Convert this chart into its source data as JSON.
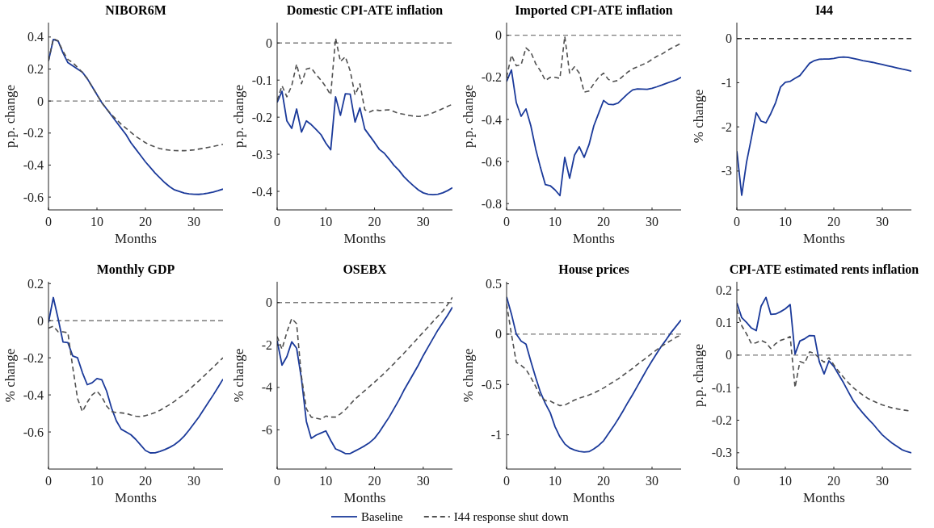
{
  "chart_data": [
    {
      "type": "line",
      "title": "NIBOR6M",
      "xlabel": "Months",
      "ylabel": "p.p. change",
      "x": [
        0,
        1,
        2,
        3,
        4,
        5,
        6,
        7,
        8,
        9,
        10,
        11,
        12,
        13,
        14,
        15,
        16,
        17,
        18,
        19,
        20,
        21,
        22,
        23,
        24,
        25,
        26,
        27,
        28,
        29,
        30,
        31,
        32,
        33,
        34,
        35,
        36
      ],
      "xlim": [
        0,
        36
      ],
      "xticks": [
        0,
        10,
        20,
        30
      ],
      "ylim": [
        -0.68,
        0.49
      ],
      "yticks": [
        -0.6,
        -0.4,
        -0.2,
        0,
        0.2,
        0.4
      ],
      "ref_lines": [
        {
          "axis": "y",
          "value": 0,
          "color": "#7a7a7a",
          "line_style": "dashed"
        }
      ],
      "series": [
        {
          "color": "#1b3a9a",
          "line_style": "solid",
          "values": [
            0.25,
            0.385,
            0.375,
            0.3,
            0.24,
            0.22,
            0.2,
            0.18,
            0.14,
            0.09,
            0.04,
            -0.01,
            -0.05,
            -0.09,
            -0.13,
            -0.17,
            -0.21,
            -0.26,
            -0.3,
            -0.34,
            -0.38,
            -0.415,
            -0.45,
            -0.48,
            -0.51,
            -0.535,
            -0.555,
            -0.565,
            -0.575,
            -0.58,
            -0.582,
            -0.583,
            -0.58,
            -0.575,
            -0.568,
            -0.56,
            -0.55
          ]
        },
        {
          "color": "#505050",
          "line_style": "dashed",
          "values": [
            0.25,
            0.39,
            0.375,
            0.31,
            0.26,
            0.24,
            0.21,
            0.18,
            0.14,
            0.09,
            0.04,
            -0.01,
            -0.05,
            -0.085,
            -0.115,
            -0.145,
            -0.17,
            -0.195,
            -0.22,
            -0.24,
            -0.26,
            -0.275,
            -0.287,
            -0.297,
            -0.303,
            -0.307,
            -0.309,
            -0.31,
            -0.31,
            -0.308,
            -0.305,
            -0.3,
            -0.295,
            -0.289,
            -0.283,
            -0.277,
            -0.27
          ]
        }
      ]
    },
    {
      "type": "line",
      "title": "Domestic CPI-ATE inflation",
      "xlabel": "Months",
      "ylabel": "p.p. change",
      "x": [
        0,
        1,
        2,
        3,
        4,
        5,
        6,
        7,
        8,
        9,
        10,
        11,
        12,
        13,
        14,
        15,
        16,
        17,
        18,
        19,
        20,
        21,
        22,
        23,
        24,
        25,
        26,
        27,
        28,
        29,
        30,
        31,
        32,
        33,
        34,
        35,
        36
      ],
      "xlim": [
        0,
        36
      ],
      "xticks": [
        0,
        10,
        20,
        30
      ],
      "ylim": [
        -0.45,
        0.055
      ],
      "yticks": [
        -0.4,
        -0.3,
        -0.2,
        -0.1,
        0
      ],
      "ref_lines": [
        {
          "axis": "y",
          "value": 0,
          "color": "#7a7a7a",
          "line_style": "dashed"
        }
      ],
      "series": [
        {
          "color": "#1b3a9a",
          "line_style": "solid",
          "values": [
            -0.16,
            -0.13,
            -0.21,
            -0.23,
            -0.178,
            -0.24,
            -0.21,
            -0.22,
            -0.233,
            -0.247,
            -0.27,
            -0.288,
            -0.145,
            -0.195,
            -0.137,
            -0.138,
            -0.213,
            -0.175,
            -0.232,
            -0.25,
            -0.268,
            -0.287,
            -0.297,
            -0.313,
            -0.33,
            -0.343,
            -0.36,
            -0.373,
            -0.385,
            -0.396,
            -0.404,
            -0.408,
            -0.409,
            -0.408,
            -0.404,
            -0.398,
            -0.39
          ]
        },
        {
          "color": "#505050",
          "line_style": "dashed",
          "values": [
            -0.155,
            -0.115,
            -0.145,
            -0.115,
            -0.057,
            -0.11,
            -0.07,
            -0.067,
            -0.085,
            -0.1,
            -0.118,
            -0.14,
            0.013,
            -0.05,
            -0.037,
            -0.075,
            -0.14,
            -0.11,
            -0.18,
            -0.186,
            -0.18,
            -0.182,
            -0.181,
            -0.18,
            -0.185,
            -0.19,
            -0.192,
            -0.195,
            -0.197,
            -0.198,
            -0.197,
            -0.193,
            -0.188,
            -0.183,
            -0.177,
            -0.171,
            -0.165
          ]
        }
      ]
    },
    {
      "type": "line",
      "title": "Imported CPI-ATE inflation",
      "xlabel": "Months",
      "ylabel": "p.p. change",
      "x": [
        0,
        1,
        2,
        3,
        4,
        5,
        6,
        7,
        8,
        9,
        10,
        11,
        12,
        13,
        14,
        15,
        16,
        17,
        18,
        19,
        20,
        21,
        22,
        23,
        24,
        25,
        26,
        27,
        28,
        29,
        30,
        31,
        32,
        33,
        34,
        35,
        36
      ],
      "xlim": [
        0,
        36
      ],
      "xticks": [
        0,
        10,
        20,
        30
      ],
      "ylim": [
        -0.83,
        0.06
      ],
      "yticks": [
        -0.8,
        -0.6,
        -0.4,
        -0.2,
        0
      ],
      "ref_lines": [
        {
          "axis": "y",
          "value": 0,
          "color": "#7a7a7a",
          "line_style": "dashed"
        }
      ],
      "series": [
        {
          "color": "#1b3a9a",
          "line_style": "solid",
          "values": [
            -0.22,
            -0.165,
            -0.32,
            -0.385,
            -0.35,
            -0.43,
            -0.54,
            -0.63,
            -0.71,
            -0.715,
            -0.735,
            -0.762,
            -0.58,
            -0.68,
            -0.57,
            -0.53,
            -0.58,
            -0.52,
            -0.43,
            -0.37,
            -0.31,
            -0.328,
            -0.33,
            -0.322,
            -0.3,
            -0.278,
            -0.26,
            -0.255,
            -0.256,
            -0.257,
            -0.252,
            -0.245,
            -0.237,
            -0.228,
            -0.22,
            -0.212,
            -0.2
          ]
        },
        {
          "color": "#505050",
          "line_style": "dashed",
          "values": [
            -0.2,
            -0.095,
            -0.145,
            -0.14,
            -0.06,
            -0.08,
            -0.135,
            -0.17,
            -0.215,
            -0.2,
            -0.2,
            -0.205,
            -0.005,
            -0.18,
            -0.15,
            -0.18,
            -0.27,
            -0.265,
            -0.23,
            -0.2,
            -0.18,
            -0.21,
            -0.22,
            -0.215,
            -0.195,
            -0.175,
            -0.16,
            -0.15,
            -0.14,
            -0.13,
            -0.115,
            -0.1,
            -0.09,
            -0.075,
            -0.062,
            -0.05,
            -0.038
          ]
        }
      ]
    },
    {
      "type": "line",
      "title": "I44",
      "xlabel": "Months",
      "ylabel": "% change",
      "x": [
        0,
        1,
        2,
        3,
        4,
        5,
        6,
        7,
        8,
        9,
        10,
        11,
        12,
        13,
        14,
        15,
        16,
        17,
        18,
        19,
        20,
        21,
        22,
        23,
        24,
        25,
        26,
        27,
        28,
        29,
        30,
        31,
        32,
        33,
        34,
        35,
        36
      ],
      "xlim": [
        0,
        36
      ],
      "xticks": [
        0,
        10,
        20,
        30
      ],
      "ylim": [
        -3.88,
        0.36
      ],
      "yticks": [
        -3,
        -2,
        -1,
        0
      ],
      "series": [
        {
          "color": "#1b3a9a",
          "line_style": "solid",
          "values": [
            -2.55,
            -3.55,
            -2.8,
            -2.25,
            -1.68,
            -1.87,
            -1.91,
            -1.7,
            -1.45,
            -1.1,
            -0.99,
            -0.97,
            -0.9,
            -0.84,
            -0.7,
            -0.56,
            -0.5,
            -0.47,
            -0.465,
            -0.465,
            -0.45,
            -0.43,
            -0.42,
            -0.43,
            -0.45,
            -0.475,
            -0.5,
            -0.52,
            -0.54,
            -0.565,
            -0.59,
            -0.615,
            -0.64,
            -0.665,
            -0.69,
            -0.71,
            -0.74
          ]
        },
        {
          "color": "#333333",
          "line_style": "dashed",
          "values": [
            0,
            0,
            0,
            0,
            0,
            0,
            0,
            0,
            0,
            0,
            0,
            0,
            0,
            0,
            0,
            0,
            0,
            0,
            0,
            0,
            0,
            0,
            0,
            0,
            0,
            0,
            0,
            0,
            0,
            0,
            0,
            0,
            0,
            0,
            0,
            0,
            0
          ]
        }
      ]
    },
    {
      "type": "line",
      "title": "Monthly GDP",
      "xlabel": "Months",
      "ylabel": "% change",
      "x": [
        0,
        1,
        2,
        3,
        4,
        5,
        6,
        7,
        8,
        9,
        10,
        11,
        12,
        13,
        14,
        15,
        16,
        17,
        18,
        19,
        20,
        21,
        22,
        23,
        24,
        25,
        26,
        27,
        28,
        29,
        30,
        31,
        32,
        33,
        34,
        35,
        36
      ],
      "xlim": [
        0,
        36
      ],
      "xticks": [
        0,
        10,
        20,
        30
      ],
      "ylim": [
        -0.8,
        0.21
      ],
      "yticks": [
        -0.6,
        -0.4,
        -0.2,
        0,
        0.2
      ],
      "ref_lines": [
        {
          "axis": "y",
          "value": 0,
          "color": "#7a7a7a",
          "line_style": "dashed"
        }
      ],
      "series": [
        {
          "color": "#1b3a9a",
          "line_style": "solid",
          "values": [
            -0.01,
            0.125,
            0.01,
            -0.115,
            -0.118,
            -0.19,
            -0.2,
            -0.28,
            -0.345,
            -0.335,
            -0.312,
            -0.318,
            -0.38,
            -0.47,
            -0.54,
            -0.585,
            -0.6,
            -0.615,
            -0.64,
            -0.67,
            -0.7,
            -0.713,
            -0.712,
            -0.705,
            -0.695,
            -0.683,
            -0.668,
            -0.648,
            -0.622,
            -0.59,
            -0.555,
            -0.52,
            -0.48,
            -0.44,
            -0.4,
            -0.358,
            -0.315
          ]
        },
        {
          "color": "#505050",
          "line_style": "dashed",
          "values": [
            -0.04,
            -0.03,
            -0.06,
            -0.06,
            -0.065,
            -0.25,
            -0.42,
            -0.49,
            -0.44,
            -0.4,
            -0.38,
            -0.41,
            -0.46,
            -0.49,
            -0.495,
            -0.497,
            -0.5,
            -0.508,
            -0.515,
            -0.517,
            -0.512,
            -0.505,
            -0.495,
            -0.483,
            -0.468,
            -0.452,
            -0.435,
            -0.415,
            -0.395,
            -0.372,
            -0.348,
            -0.325,
            -0.3,
            -0.275,
            -0.25,
            -0.225,
            -0.2
          ]
        }
      ]
    },
    {
      "type": "line",
      "title": "OSEBX",
      "xlabel": "Months",
      "ylabel": "% change",
      "legend": "bottom",
      "x": [
        0,
        1,
        2,
        3,
        4,
        5,
        6,
        7,
        8,
        9,
        10,
        11,
        12,
        13,
        14,
        15,
        16,
        17,
        18,
        19,
        20,
        21,
        22,
        23,
        24,
        25,
        26,
        27,
        28,
        29,
        30,
        31,
        32,
        33,
        34,
        35,
        36
      ],
      "xlim": [
        0,
        36
      ],
      "xticks": [
        0,
        10,
        20,
        30
      ],
      "ylim": [
        -7.85,
        0.98
      ],
      "yticks": [
        -6,
        -4,
        -2,
        0
      ],
      "ref_lines": [
        {
          "axis": "y",
          "value": 0,
          "color": "#7a7a7a",
          "line_style": "dashed"
        }
      ],
      "series": [
        {
          "name": "Baseline",
          "color": "#1b3a9a",
          "line_style": "solid",
          "values": [
            -1.8,
            -2.95,
            -2.55,
            -1.85,
            -2.15,
            -3.6,
            -5.6,
            -6.4,
            -6.25,
            -6.15,
            -6.05,
            -6.5,
            -6.9,
            -7.0,
            -7.12,
            -7.12,
            -7.0,
            -6.88,
            -6.75,
            -6.6,
            -6.4,
            -6.1,
            -5.75,
            -5.4,
            -5.0,
            -4.6,
            -4.15,
            -3.75,
            -3.35,
            -2.95,
            -2.5,
            -2.1,
            -1.7,
            -1.3,
            -0.95,
            -0.6,
            -0.22
          ]
        },
        {
          "name": "I44 response shut down",
          "color": "#505050",
          "line_style": "dashed",
          "values": [
            -1.6,
            -2.2,
            -1.4,
            -0.75,
            -1.0,
            -3.5,
            -5.0,
            -5.4,
            -5.45,
            -5.5,
            -5.35,
            -5.4,
            -5.4,
            -5.25,
            -5.05,
            -4.8,
            -4.55,
            -4.35,
            -4.15,
            -3.95,
            -3.75,
            -3.55,
            -3.33,
            -3.1,
            -2.88,
            -2.63,
            -2.4,
            -2.15,
            -1.9,
            -1.65,
            -1.4,
            -1.15,
            -0.9,
            -0.65,
            -0.4,
            -0.1,
            0.25
          ]
        }
      ]
    },
    {
      "type": "line",
      "title": "House prices",
      "xlabel": "Months",
      "ylabel": "% change",
      "x": [
        0,
        1,
        2,
        3,
        4,
        5,
        6,
        7,
        8,
        9,
        10,
        11,
        12,
        13,
        14,
        15,
        16,
        17,
        18,
        19,
        20,
        21,
        22,
        23,
        24,
        25,
        26,
        27,
        28,
        29,
        30,
        31,
        32,
        33,
        34,
        35,
        36
      ],
      "xlim": [
        0,
        36
      ],
      "xticks": [
        0,
        10,
        20,
        30
      ],
      "ylim": [
        -1.34,
        0.52
      ],
      "yticks": [
        -1,
        -0.5,
        0,
        0.5
      ],
      "ref_lines": [
        {
          "axis": "y",
          "value": 0,
          "color": "#7a7a7a",
          "line_style": "dashed"
        }
      ],
      "series": [
        {
          "color": "#1b3a9a",
          "line_style": "solid",
          "values": [
            0.37,
            0.2,
            0.0,
            -0.07,
            -0.1,
            -0.27,
            -0.43,
            -0.58,
            -0.69,
            -0.78,
            -0.92,
            -1.02,
            -1.09,
            -1.13,
            -1.15,
            -1.165,
            -1.17,
            -1.167,
            -1.14,
            -1.105,
            -1.06,
            -0.99,
            -0.92,
            -0.845,
            -0.765,
            -0.68,
            -0.6,
            -0.515,
            -0.43,
            -0.345,
            -0.265,
            -0.19,
            -0.115,
            -0.05,
            0.02,
            0.08,
            0.14
          ]
        },
        {
          "color": "#505050",
          "line_style": "dashed",
          "values": [
            0.3,
            0.0,
            -0.28,
            -0.31,
            -0.35,
            -0.43,
            -0.52,
            -0.62,
            -0.66,
            -0.665,
            -0.69,
            -0.71,
            -0.705,
            -0.68,
            -0.655,
            -0.635,
            -0.62,
            -0.605,
            -0.585,
            -0.56,
            -0.535,
            -0.505,
            -0.475,
            -0.445,
            -0.41,
            -0.375,
            -0.34,
            -0.3,
            -0.265,
            -0.23,
            -0.19,
            -0.155,
            -0.12,
            -0.09,
            -0.06,
            -0.03,
            -0.01
          ]
        }
      ]
    },
    {
      "type": "line",
      "title": "CPI-ATE estimated rents inflation",
      "xlabel": "Months",
      "ylabel": "p.p. change",
      "x": [
        0,
        1,
        2,
        3,
        4,
        5,
        6,
        7,
        8,
        9,
        10,
        11,
        12,
        13,
        14,
        15,
        16,
        17,
        18,
        19,
        20,
        21,
        22,
        23,
        24,
        25,
        26,
        27,
        28,
        29,
        30,
        31,
        32,
        33,
        34,
        35,
        36
      ],
      "xlim": [
        0,
        36
      ],
      "xticks": [
        0,
        10,
        20,
        30
      ],
      "ylim": [
        -0.35,
        0.225
      ],
      "yticks": [
        -0.3,
        -0.2,
        -0.1,
        0,
        0.1,
        0.2
      ],
      "ref_lines": [
        {
          "axis": "y",
          "value": 0,
          "color": "#7a7a7a",
          "line_style": "dashed"
        }
      ],
      "series": [
        {
          "color": "#1b3a9a",
          "line_style": "solid",
          "values": [
            0.16,
            0.115,
            0.1,
            0.083,
            0.075,
            0.15,
            0.177,
            0.125,
            0.126,
            0.133,
            0.142,
            0.155,
            0.003,
            0.043,
            0.05,
            0.06,
            0.059,
            -0.02,
            -0.058,
            -0.018,
            -0.035,
            -0.06,
            -0.085,
            -0.113,
            -0.14,
            -0.16,
            -0.178,
            -0.195,
            -0.21,
            -0.228,
            -0.245,
            -0.258,
            -0.27,
            -0.28,
            -0.29,
            -0.296,
            -0.3
          ]
        },
        {
          "color": "#505050",
          "line_style": "dashed",
          "values": [
            0.14,
            0.09,
            0.065,
            0.035,
            0.038,
            0.045,
            0.038,
            0.02,
            0.035,
            0.045,
            0.05,
            0.057,
            -0.1,
            -0.02,
            -0.025,
            0.01,
            0.005,
            -0.01,
            -0.022,
            -0.008,
            -0.03,
            -0.05,
            -0.068,
            -0.085,
            -0.1,
            -0.112,
            -0.123,
            -0.133,
            -0.14,
            -0.147,
            -0.153,
            -0.158,
            -0.162,
            -0.165,
            -0.168,
            -0.17,
            -0.172
          ]
        }
      ]
    }
  ]
}
